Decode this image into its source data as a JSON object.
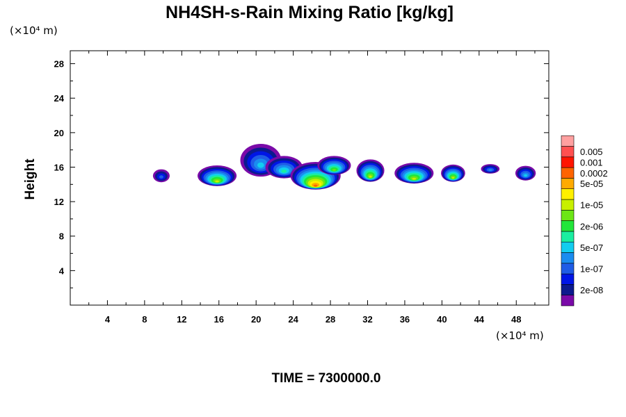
{
  "chart_data": {
    "type": "heatmap",
    "title": "NH4SH-s-Rain Mixing Ratio [kg/kg]",
    "x_unit": "(×10⁴ m)",
    "y_unit": "(×10⁴ m)",
    "ylabel": "Height",
    "xlim": [
      0,
      51.5
    ],
    "ylim": [
      0,
      29.5
    ],
    "x_ticks": [
      4,
      8,
      12,
      16,
      20,
      24,
      28,
      32,
      36,
      40,
      44,
      48
    ],
    "y_ticks": [
      4,
      8,
      12,
      16,
      20,
      24,
      28
    ],
    "colorbar": {
      "colors": [
        "#7a0aa8",
        "#0c1a8e",
        "#0016e6",
        "#1f5ce6",
        "#1a8cf0",
        "#12cdf0",
        "#1aeea0",
        "#22e63a",
        "#6ce616",
        "#c8f000",
        "#fff000",
        "#ffaa00",
        "#ff6400",
        "#ff1400",
        "#ff5050",
        "#ffa0a0"
      ],
      "labels": [
        {
          "text": "2e-08",
          "index": 1
        },
        {
          "text": "1e-07",
          "index": 3
        },
        {
          "text": "5e-07",
          "index": 5
        },
        {
          "text": "2e-06",
          "index": 7
        },
        {
          "text": "1e-05",
          "index": 9
        },
        {
          "text": "5e-05",
          "index": 11
        },
        {
          "text": "0.0002",
          "index": 12
        },
        {
          "text": "0.001",
          "index": 13
        },
        {
          "text": "0.005",
          "index": 14
        }
      ]
    },
    "blobs": [
      {
        "cx": 9.8,
        "cy": 15.0,
        "rx": 0.9,
        "ry": 0.75,
        "peak": 3
      },
      {
        "cx": 15.8,
        "cy": 15.0,
        "rx": 2.1,
        "ry": 1.2,
        "peak": 9
      },
      {
        "cx": 20.5,
        "cy": 16.8,
        "rx": 2.2,
        "ry": 1.9,
        "peak": 5
      },
      {
        "cx": 23.0,
        "cy": 16.0,
        "rx": 2.0,
        "ry": 1.3,
        "peak": 6
      },
      {
        "cx": 26.4,
        "cy": 15.0,
        "rx": 2.7,
        "ry": 1.6,
        "peak": 12
      },
      {
        "cx": 28.4,
        "cy": 16.2,
        "rx": 1.8,
        "ry": 1.1,
        "peak": 8
      },
      {
        "cx": 32.3,
        "cy": 15.6,
        "rx": 1.5,
        "ry": 1.3,
        "peak": 9
      },
      {
        "cx": 37.0,
        "cy": 15.3,
        "rx": 2.1,
        "ry": 1.2,
        "peak": 9
      },
      {
        "cx": 41.2,
        "cy": 15.3,
        "rx": 1.3,
        "ry": 1.0,
        "peak": 9
      },
      {
        "cx": 45.2,
        "cy": 15.8,
        "rx": 1.0,
        "ry": 0.55,
        "peak": 4
      },
      {
        "cx": 49.0,
        "cy": 15.3,
        "rx": 1.1,
        "ry": 0.85,
        "peak": 5
      }
    ]
  },
  "footer": {
    "time_label": "TIME = 7300000.0"
  }
}
